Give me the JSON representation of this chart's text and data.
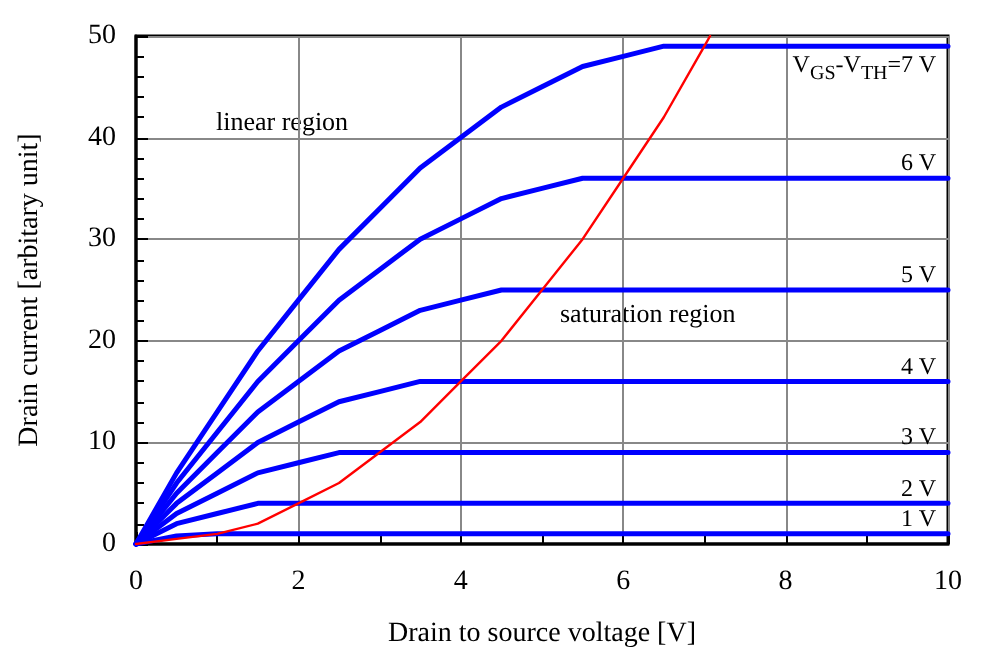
{
  "chart_data": {
    "type": "line",
    "xlabel": "Drain to source voltage [V]",
    "ylabel": "Drain current [arbitary unit]",
    "xlim": [
      0,
      10
    ],
    "xticks": [
      0,
      2,
      4,
      6,
      8,
      10
    ],
    "ylim": [
      0,
      50
    ],
    "yticks": [
      0,
      10,
      20,
      30,
      40,
      50
    ],
    "grid": true,
    "legend": false,
    "marker": "none",
    "line_style": "solid",
    "annotations": [
      "linear region",
      "saturation region"
    ],
    "series": [
      {
        "name": "V$_{GS}$-V$_{TH}$=7 V",
        "color": "#0000ff",
        "x": [
          0,
          0.5,
          1,
          1.5,
          2,
          2.5,
          3,
          3.5,
          4,
          4.5,
          5,
          5.5,
          6,
          6.5,
          7,
          10
        ],
        "values": [
          0,
          7,
          13,
          19,
          24,
          29,
          33,
          37,
          40,
          43,
          45,
          47,
          48,
          49,
          49,
          49
        ]
      },
      {
        "name": "6 V",
        "color": "#0000ff",
        "x": [
          0,
          0.5,
          1,
          1.5,
          2,
          2.5,
          3,
          3.5,
          4,
          4.5,
          5,
          5.5,
          6,
          10
        ],
        "values": [
          0,
          6,
          11,
          16,
          20,
          24,
          27,
          30,
          32,
          34,
          35,
          36,
          36,
          36
        ]
      },
      {
        "name": "5 V",
        "color": "#0000ff",
        "x": [
          0,
          0.5,
          1,
          1.5,
          2,
          2.5,
          3,
          3.5,
          4,
          4.5,
          5,
          10
        ],
        "values": [
          0,
          5,
          9,
          13,
          16,
          19,
          21,
          23,
          24,
          25,
          25,
          25
        ]
      },
      {
        "name": "4 V",
        "color": "#0000ff",
        "x": [
          0,
          0.5,
          1,
          1.5,
          2,
          2.5,
          3,
          3.5,
          4,
          10
        ],
        "values": [
          0,
          4,
          7,
          10,
          12,
          14,
          15,
          16,
          16,
          16
        ]
      },
      {
        "name": "3 V",
        "color": "#0000ff",
        "x": [
          0,
          0.5,
          1,
          1.5,
          2,
          2.5,
          3,
          10
        ],
        "values": [
          0,
          3,
          5,
          7,
          8,
          9,
          9,
          9
        ]
      },
      {
        "name": "2 V",
        "color": "#0000ff",
        "x": [
          0,
          0.5,
          1,
          1.5,
          2,
          10
        ],
        "values": [
          0,
          2,
          3,
          4,
          4,
          4
        ]
      },
      {
        "name": "1 V",
        "color": "#0000ff",
        "x": [
          0,
          0.5,
          1,
          10
        ],
        "values": [
          0,
          0.8,
          1,
          1
        ]
      },
      {
        "color": "#ff0000",
        "x": [
          0,
          0.5,
          1,
          1.5,
          2,
          2.5,
          3,
          3.5,
          4,
          4.5,
          5,
          5.5,
          6,
          6.5,
          7,
          7.07
        ],
        "values": [
          0,
          0.5,
          1,
          2,
          4,
          6,
          9,
          12,
          16,
          20,
          25,
          30,
          36,
          42,
          49,
          50
        ]
      }
    ]
  }
}
